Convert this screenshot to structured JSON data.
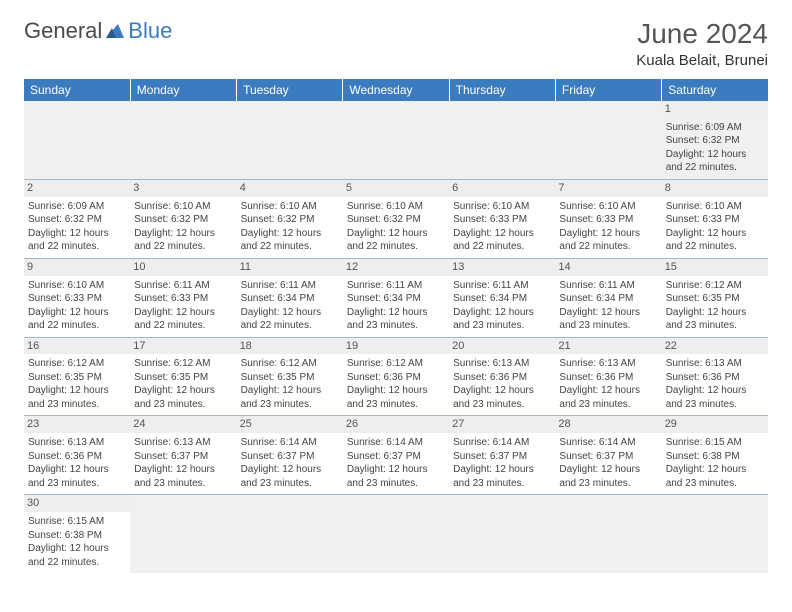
{
  "logo": {
    "general": "General",
    "blue": "Blue"
  },
  "title": {
    "month": "June 2024",
    "location": "Kuala Belait, Brunei"
  },
  "colors": {
    "header_bg": "#3b7bbf",
    "header_text": "#ffffff",
    "sail": "#3b7bbf"
  },
  "weekdays": [
    "Sunday",
    "Monday",
    "Tuesday",
    "Wednesday",
    "Thursday",
    "Friday",
    "Saturday"
  ],
  "weeks": [
    [
      null,
      null,
      null,
      null,
      null,
      null,
      {
        "n": "1",
        "sr": "6:09 AM",
        "ss": "6:32 PM",
        "dl": "12 hours and 22 minutes."
      }
    ],
    [
      {
        "n": "2",
        "sr": "6:09 AM",
        "ss": "6:32 PM",
        "dl": "12 hours and 22 minutes."
      },
      {
        "n": "3",
        "sr": "6:10 AM",
        "ss": "6:32 PM",
        "dl": "12 hours and 22 minutes."
      },
      {
        "n": "4",
        "sr": "6:10 AM",
        "ss": "6:32 PM",
        "dl": "12 hours and 22 minutes."
      },
      {
        "n": "5",
        "sr": "6:10 AM",
        "ss": "6:32 PM",
        "dl": "12 hours and 22 minutes."
      },
      {
        "n": "6",
        "sr": "6:10 AM",
        "ss": "6:33 PM",
        "dl": "12 hours and 22 minutes."
      },
      {
        "n": "7",
        "sr": "6:10 AM",
        "ss": "6:33 PM",
        "dl": "12 hours and 22 minutes."
      },
      {
        "n": "8",
        "sr": "6:10 AM",
        "ss": "6:33 PM",
        "dl": "12 hours and 22 minutes."
      }
    ],
    [
      {
        "n": "9",
        "sr": "6:10 AM",
        "ss": "6:33 PM",
        "dl": "12 hours and 22 minutes."
      },
      {
        "n": "10",
        "sr": "6:11 AM",
        "ss": "6:33 PM",
        "dl": "12 hours and 22 minutes."
      },
      {
        "n": "11",
        "sr": "6:11 AM",
        "ss": "6:34 PM",
        "dl": "12 hours and 22 minutes."
      },
      {
        "n": "12",
        "sr": "6:11 AM",
        "ss": "6:34 PM",
        "dl": "12 hours and 23 minutes."
      },
      {
        "n": "13",
        "sr": "6:11 AM",
        "ss": "6:34 PM",
        "dl": "12 hours and 23 minutes."
      },
      {
        "n": "14",
        "sr": "6:11 AM",
        "ss": "6:34 PM",
        "dl": "12 hours and 23 minutes."
      },
      {
        "n": "15",
        "sr": "6:12 AM",
        "ss": "6:35 PM",
        "dl": "12 hours and 23 minutes."
      }
    ],
    [
      {
        "n": "16",
        "sr": "6:12 AM",
        "ss": "6:35 PM",
        "dl": "12 hours and 23 minutes."
      },
      {
        "n": "17",
        "sr": "6:12 AM",
        "ss": "6:35 PM",
        "dl": "12 hours and 23 minutes."
      },
      {
        "n": "18",
        "sr": "6:12 AM",
        "ss": "6:35 PM",
        "dl": "12 hours and 23 minutes."
      },
      {
        "n": "19",
        "sr": "6:12 AM",
        "ss": "6:36 PM",
        "dl": "12 hours and 23 minutes."
      },
      {
        "n": "20",
        "sr": "6:13 AM",
        "ss": "6:36 PM",
        "dl": "12 hours and 23 minutes."
      },
      {
        "n": "21",
        "sr": "6:13 AM",
        "ss": "6:36 PM",
        "dl": "12 hours and 23 minutes."
      },
      {
        "n": "22",
        "sr": "6:13 AM",
        "ss": "6:36 PM",
        "dl": "12 hours and 23 minutes."
      }
    ],
    [
      {
        "n": "23",
        "sr": "6:13 AM",
        "ss": "6:36 PM",
        "dl": "12 hours and 23 minutes."
      },
      {
        "n": "24",
        "sr": "6:13 AM",
        "ss": "6:37 PM",
        "dl": "12 hours and 23 minutes."
      },
      {
        "n": "25",
        "sr": "6:14 AM",
        "ss": "6:37 PM",
        "dl": "12 hours and 23 minutes."
      },
      {
        "n": "26",
        "sr": "6:14 AM",
        "ss": "6:37 PM",
        "dl": "12 hours and 23 minutes."
      },
      {
        "n": "27",
        "sr": "6:14 AM",
        "ss": "6:37 PM",
        "dl": "12 hours and 23 minutes."
      },
      {
        "n": "28",
        "sr": "6:14 AM",
        "ss": "6:37 PM",
        "dl": "12 hours and 23 minutes."
      },
      {
        "n": "29",
        "sr": "6:15 AM",
        "ss": "6:38 PM",
        "dl": "12 hours and 23 minutes."
      }
    ],
    [
      {
        "n": "30",
        "sr": "6:15 AM",
        "ss": "6:38 PM",
        "dl": "12 hours and 22 minutes."
      },
      null,
      null,
      null,
      null,
      null,
      null
    ]
  ],
  "labels": {
    "sunrise": "Sunrise:",
    "sunset": "Sunset:",
    "daylight": "Daylight:"
  }
}
